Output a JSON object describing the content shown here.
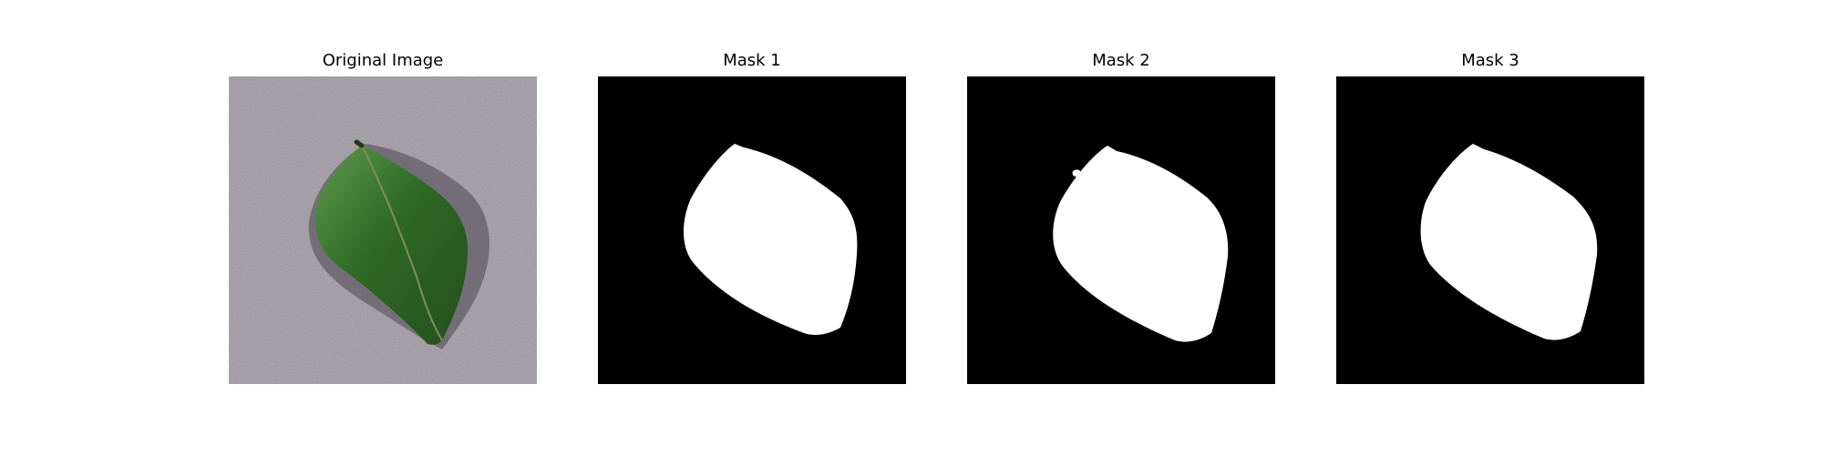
{
  "figure": {
    "panels": [
      {
        "title": "Original Image",
        "kind": "photo"
      },
      {
        "title": "Mask 1",
        "kind": "mask"
      },
      {
        "title": "Mask 2",
        "kind": "mask"
      },
      {
        "title": "Mask 3",
        "kind": "mask"
      }
    ]
  },
  "colors": {
    "background_photo": "#b3adb6",
    "leaf_fill": "#2f6a25",
    "leaf_highlight": "#5f9a4d",
    "leaf_vein": "#7f8e5c",
    "leaf_shadow": "#4a4650",
    "mask_background": "#000000",
    "mask_foreground": "#ffffff"
  }
}
